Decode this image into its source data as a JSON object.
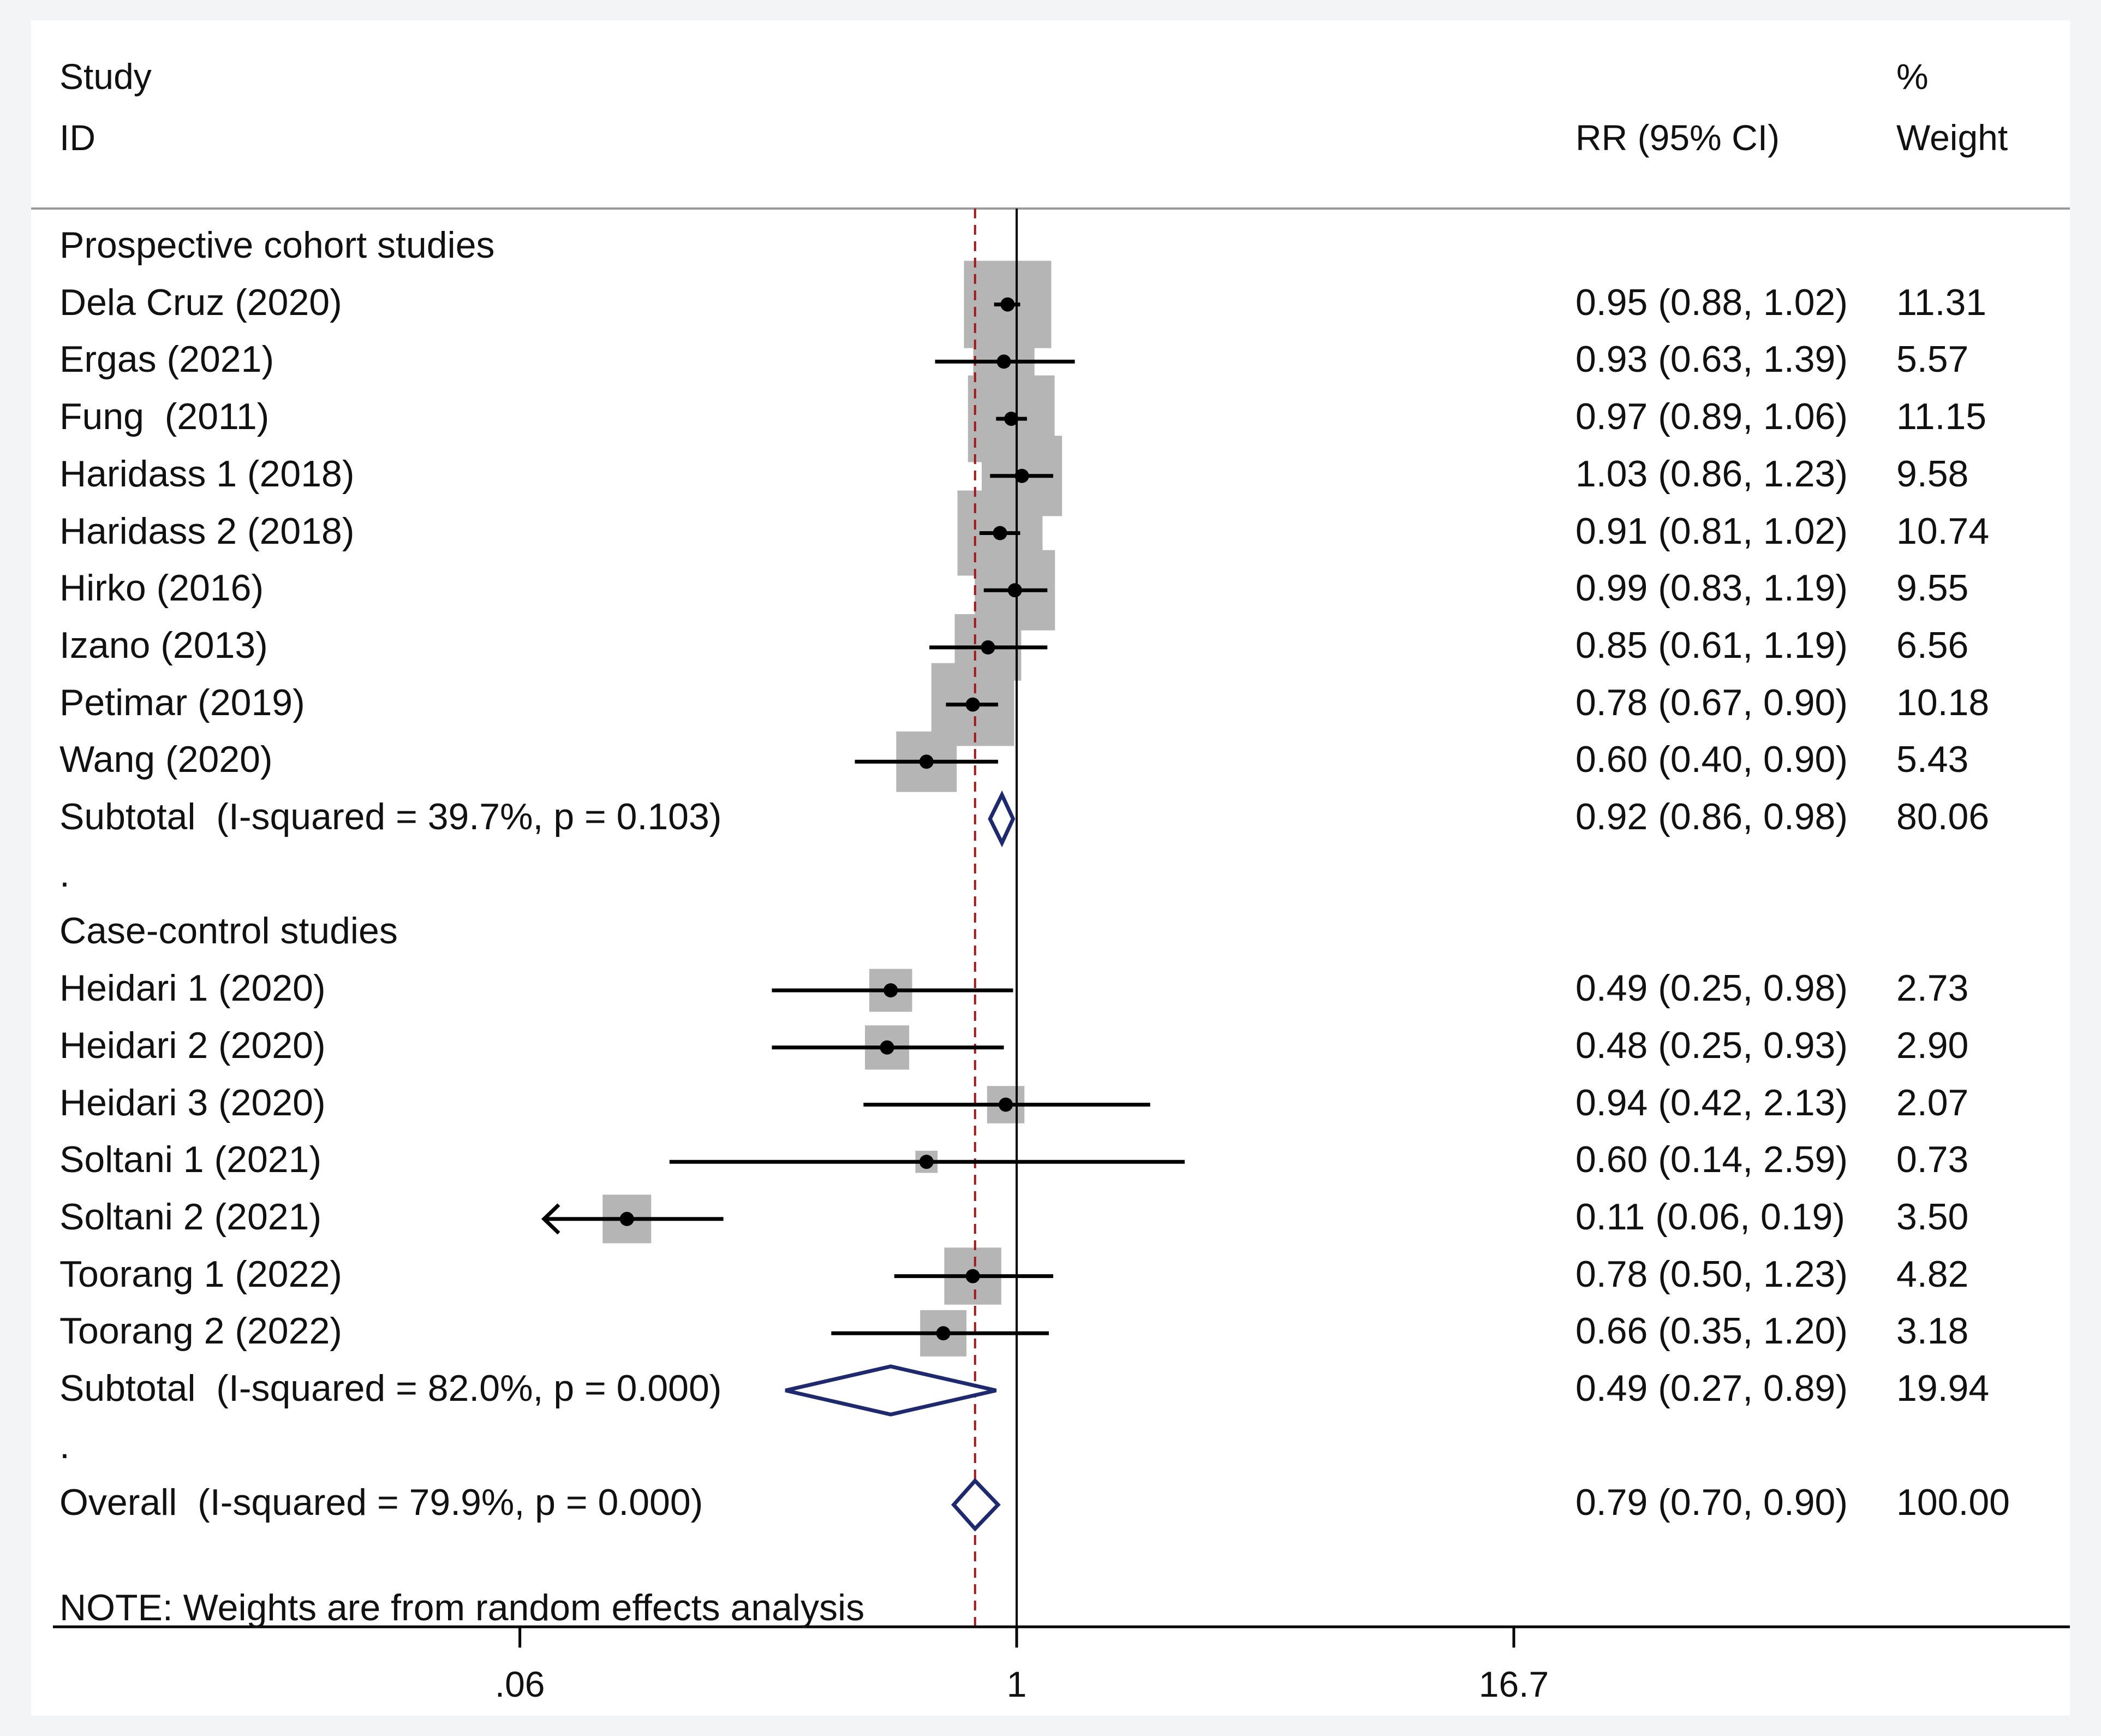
{
  "header": {
    "study_label": "Study",
    "id_label": "ID",
    "effect_label": "RR (95% CI)",
    "pct_label": "%",
    "weight_label": "Weight"
  },
  "note": "NOTE: Weights are from random effects analysis",
  "colors": {
    "box": "#b5b5b5",
    "diamond": "#1f2a6e",
    "ref_line": "#9e1b1b",
    "line": "#000000"
  },
  "chart_data": {
    "type": "forest",
    "axis": {
      "scale": "log",
      "ticks": [
        0.06,
        1,
        16.7
      ],
      "tick_labels": [
        ".06",
        "1",
        "16.7"
      ],
      "range": [
        0.06,
        16.7
      ]
    },
    "overall_line": 0.79,
    "rows": [
      {
        "kind": "group",
        "label": "Prospective cohort studies"
      },
      {
        "kind": "study",
        "label": "Dela Cruz (2020)",
        "rr": 0.95,
        "lo": 0.88,
        "hi": 1.02,
        "ci": "0.95 (0.88, 1.02)",
        "weight": "11.31"
      },
      {
        "kind": "study",
        "label": "Ergas (2021)",
        "rr": 0.93,
        "lo": 0.63,
        "hi": 1.39,
        "ci": "0.93 (0.63, 1.39)",
        "weight": "5.57"
      },
      {
        "kind": "study",
        "label": "Fung  (2011)",
        "rr": 0.97,
        "lo": 0.89,
        "hi": 1.06,
        "ci": "0.97 (0.89, 1.06)",
        "weight": "11.15"
      },
      {
        "kind": "study",
        "label": "Haridass 1 (2018)",
        "rr": 1.03,
        "lo": 0.86,
        "hi": 1.23,
        "ci": "1.03 (0.86, 1.23)",
        "weight": "9.58"
      },
      {
        "kind": "study",
        "label": "Haridass 2 (2018)",
        "rr": 0.91,
        "lo": 0.81,
        "hi": 1.02,
        "ci": "0.91 (0.81, 1.02)",
        "weight": "10.74"
      },
      {
        "kind": "study",
        "label": "Hirko (2016)",
        "rr": 0.99,
        "lo": 0.83,
        "hi": 1.19,
        "ci": "0.99 (0.83, 1.19)",
        "weight": "9.55"
      },
      {
        "kind": "study",
        "label": "Izano (2013)",
        "rr": 0.85,
        "lo": 0.61,
        "hi": 1.19,
        "ci": "0.85 (0.61, 1.19)",
        "weight": "6.56"
      },
      {
        "kind": "study",
        "label": "Petimar (2019)",
        "rr": 0.78,
        "lo": 0.67,
        "hi": 0.9,
        "ci": "0.78 (0.67, 0.90)",
        "weight": "10.18"
      },
      {
        "kind": "study",
        "label": "Wang (2020)",
        "rr": 0.6,
        "lo": 0.4,
        "hi": 0.9,
        "ci": "0.60 (0.40, 0.90)",
        "weight": "5.43"
      },
      {
        "kind": "subtotal",
        "label": "Subtotal  (I-squared = 39.7%, p = 0.103)",
        "rr": 0.92,
        "lo": 0.86,
        "hi": 0.98,
        "ci": "0.92 (0.86, 0.98)",
        "weight": "80.06"
      },
      {
        "kind": "spacer",
        "label": "."
      },
      {
        "kind": "group",
        "label": "Case-control studies"
      },
      {
        "kind": "study",
        "label": "Heidari 1 (2020)",
        "rr": 0.49,
        "lo": 0.25,
        "hi": 0.98,
        "ci": "0.49 (0.25, 0.98)",
        "weight": "2.73"
      },
      {
        "kind": "study",
        "label": "Heidari 2 (2020)",
        "rr": 0.48,
        "lo": 0.25,
        "hi": 0.93,
        "ci": "0.48 (0.25, 0.93)",
        "weight": "2.90"
      },
      {
        "kind": "study",
        "label": "Heidari 3 (2020)",
        "rr": 0.94,
        "lo": 0.42,
        "hi": 2.13,
        "ci": "0.94 (0.42, 2.13)",
        "weight": "2.07"
      },
      {
        "kind": "study",
        "label": "Soltani 1 (2021)",
        "rr": 0.6,
        "lo": 0.14,
        "hi": 2.59,
        "ci": "0.60 (0.14, 2.59)",
        "weight": "0.73"
      },
      {
        "kind": "study",
        "label": "Soltani 2 (2021)",
        "rr": 0.11,
        "lo": 0.06,
        "hi": 0.19,
        "ci": "0.11 (0.06, 0.19)",
        "weight": "3.50",
        "arrow_left": true
      },
      {
        "kind": "study",
        "label": "Toorang 1 (2022)",
        "rr": 0.78,
        "lo": 0.5,
        "hi": 1.23,
        "ci": "0.78 (0.50, 1.23)",
        "weight": "4.82"
      },
      {
        "kind": "study",
        "label": "Toorang 2 (2022)",
        "rr": 0.66,
        "lo": 0.35,
        "hi": 1.2,
        "ci": "0.66 (0.35, 1.20)",
        "weight": "3.18"
      },
      {
        "kind": "subtotal",
        "label": "Subtotal  (I-squared = 82.0%, p = 0.000)",
        "rr": 0.49,
        "lo": 0.27,
        "hi": 0.89,
        "ci": "0.49 (0.27, 0.89)",
        "weight": "19.94"
      },
      {
        "kind": "spacer",
        "label": "."
      },
      {
        "kind": "overall",
        "label": "Overall  (I-squared = 79.9%, p = 0.000)",
        "rr": 0.79,
        "lo": 0.7,
        "hi": 0.9,
        "ci": "0.79 (0.70, 0.90)",
        "weight": "100.00"
      }
    ]
  }
}
